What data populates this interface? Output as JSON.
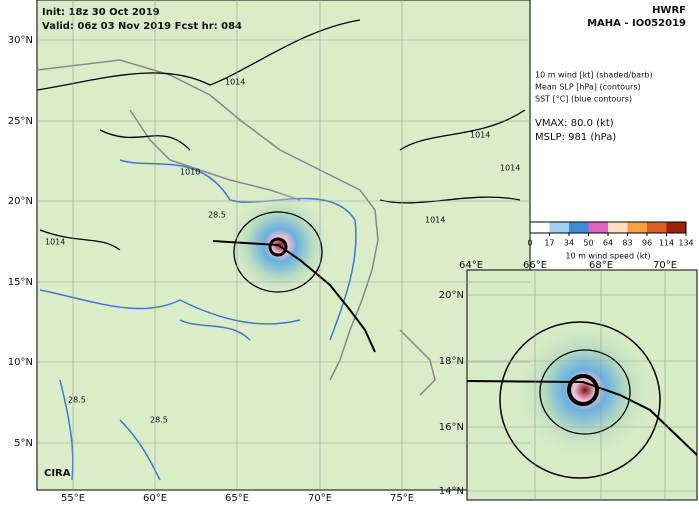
{
  "header": {
    "init": "Init: 18z 30 Oct 2019",
    "valid": "Valid: 06z 03 Nov 2019 Fcst hr: 084",
    "model": "HWRF",
    "storm": "MAHA - IO052019"
  },
  "legend": {
    "lines": [
      "10 m wind [kt] (shaded/barb)",
      "Mean SLP [hPa] (contours)",
      "SST [°C] (blue contours)"
    ],
    "vmax": "VMAX:  80.0 (kt)",
    "mslp": "MSLP:  981 (hPa)"
  },
  "colorbar": {
    "ticks": [
      0,
      17,
      34,
      50,
      64,
      83,
      96,
      114,
      134
    ],
    "label": "10 m wind speed (kt)"
  },
  "map": {
    "lat_labels": [
      "30°N",
      "25°N",
      "20°N",
      "15°N",
      "10°N",
      "5°N"
    ],
    "lon_labels": [
      "55°E",
      "60°E",
      "65°E",
      "70°E",
      "75°E"
    ],
    "contour_labels": [
      "1014",
      "1014",
      "1010",
      "1014",
      "1014",
      "1014",
      "28.5",
      "28.5",
      "28.5"
    ]
  },
  "inset": {
    "lon_labels": [
      "64°E",
      "66°E",
      "68°E",
      "70°E"
    ],
    "lat_labels": [
      "20°N",
      "18°N",
      "16°N",
      "14°N"
    ]
  },
  "logo": "CIRA"
}
